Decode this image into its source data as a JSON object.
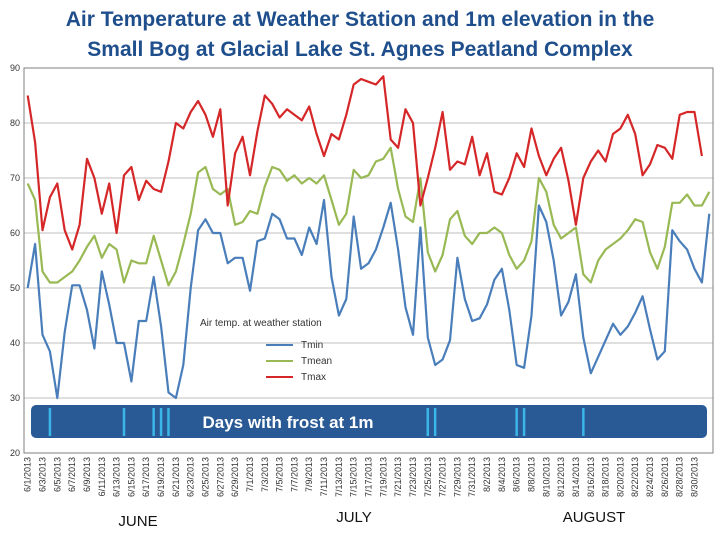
{
  "chart_data": {
    "type": "line",
    "title_line1": "Air Temperature at Weather Station and 1m elevation in the",
    "title_line2": "Small Bog at Glacial Lake St. Agnes Peatland Complex",
    "legend_title": "Air temp. at weather station",
    "ylim": [
      20,
      90
    ],
    "yticks": [
      "20",
      "30",
      "40",
      "50",
      "60",
      "70",
      "80",
      "90"
    ],
    "grid": true,
    "x_labels": [
      "6/1/2013",
      "6/3/2013",
      "6/5/2013",
      "6/7/2013",
      "6/9/2013",
      "6/11/2013",
      "6/13/2013",
      "6/15/2013",
      "6/17/2013",
      "6/19/2013",
      "6/21/2013",
      "6/23/2013",
      "6/25/2013",
      "6/27/2013",
      "6/29/2013",
      "7/1/2013",
      "7/3/2013",
      "7/5/2013",
      "7/7/2013",
      "7/9/2013",
      "7/11/2013",
      "7/13/2013",
      "7/15/2013",
      "7/17/2013",
      "7/19/2013",
      "7/21/2013",
      "7/23/2013",
      "7/25/2013",
      "7/27/2013",
      "7/29/2013",
      "7/31/2013",
      "8/2/2013",
      "8/4/2013",
      "8/6/2013",
      "8/8/2013",
      "8/10/2013",
      "8/12/2013",
      "8/14/2013",
      "8/16/2013",
      "8/18/2013",
      "8/20/2013",
      "8/22/2013",
      "8/24/2013",
      "8/26/2013",
      "8/28/2013",
      "8/30/2013"
    ],
    "months": [
      "JUNE",
      "JULY",
      "AUGUST"
    ],
    "series": [
      {
        "name": "Tmin",
        "color": "#4a7ebb",
        "values": [
          50,
          58,
          41.5,
          38.5,
          30,
          42,
          50.5,
          50.5,
          46,
          39,
          53,
          47,
          40,
          40,
          33,
          44,
          44,
          52,
          43,
          31,
          30,
          36,
          50,
          60.5,
          62.5,
          60,
          60,
          54.5,
          55.5,
          55.5,
          49.5,
          58.5,
          59,
          63.5,
          62.5,
          59,
          59,
          56,
          61,
          58,
          66,
          52,
          45,
          48,
          63,
          53.5,
          54.5,
          57,
          61,
          65.5,
          57,
          46.5,
          41.5,
          61,
          41,
          36,
          37,
          40.5,
          55.5,
          48,
          44,
          44.5,
          47,
          51.5,
          53.5,
          46,
          36,
          35.5,
          45,
          65,
          62,
          55,
          45,
          47.5,
          52.5,
          41,
          34.5,
          37.5,
          40.5,
          43.5,
          41.5,
          43,
          45.5,
          48.5,
          42.5,
          37,
          38.5,
          60.5,
          58.5,
          57,
          53.5,
          51,
          63.5
        ]
      },
      {
        "name": "Tmean",
        "color": "#98b954",
        "values": [
          69,
          66,
          53,
          51,
          51,
          52,
          53,
          55,
          57.5,
          59.5,
          55.5,
          58,
          57,
          51,
          55,
          54.5,
          54.5,
          59.5,
          55,
          50.5,
          53,
          58,
          63.5,
          71,
          72,
          68,
          67,
          68,
          61.5,
          62,
          64,
          63.5,
          68.5,
          72,
          71.5,
          69.5,
          70.5,
          69,
          70,
          69,
          70.5,
          66,
          61.5,
          63.5,
          71.5,
          70,
          70.5,
          73,
          73.5,
          75.5,
          68,
          63,
          62,
          70,
          56.5,
          53,
          56,
          62.5,
          64,
          59.5,
          58,
          60,
          60,
          61,
          60,
          56,
          53.5,
          55,
          58.5,
          70,
          67.5,
          61.5,
          59,
          60,
          61,
          52.5,
          51,
          55,
          57,
          58,
          59,
          60.5,
          62.5,
          62,
          56.5,
          53.5,
          57.5,
          65.5,
          65.5,
          67,
          65,
          65,
          67.5
        ]
      },
      {
        "name": "Tmax",
        "color": "#d62728",
        "values": [
          85,
          76.5,
          60.5,
          66.5,
          69,
          60.5,
          57,
          61.5,
          73.5,
          70,
          63.5,
          69,
          60,
          70.5,
          72,
          66,
          69.5,
          68,
          67.5,
          73,
          80,
          79,
          82,
          84,
          81.5,
          77.5,
          82.5,
          65,
          74.5,
          77.5,
          70.5,
          78.5,
          85,
          83.5,
          81,
          82.5,
          81.5,
          80.5,
          83,
          78,
          74,
          78,
          77,
          81.5,
          87,
          88,
          87.5,
          87,
          88.5,
          77,
          75.5,
          82.5,
          80,
          65,
          70,
          75.5,
          82,
          71.5,
          73,
          72.5,
          77.5,
          70.5,
          74.5,
          67.5,
          67,
          70,
          74.5,
          72,
          79,
          74,
          70.5,
          73.5,
          75.5,
          69.5,
          61.5,
          70,
          73,
          75,
          73,
          78,
          79,
          81.5,
          78,
          70.5,
          72.5,
          76,
          75.5,
          73.5,
          81.5,
          82,
          82,
          74
        ]
      }
    ],
    "frost_band": {
      "label": "Days with frost at 1m",
      "frost_day_indices": [
        3,
        13,
        17,
        18,
        19,
        54,
        55,
        66,
        67,
        75
      ]
    }
  }
}
